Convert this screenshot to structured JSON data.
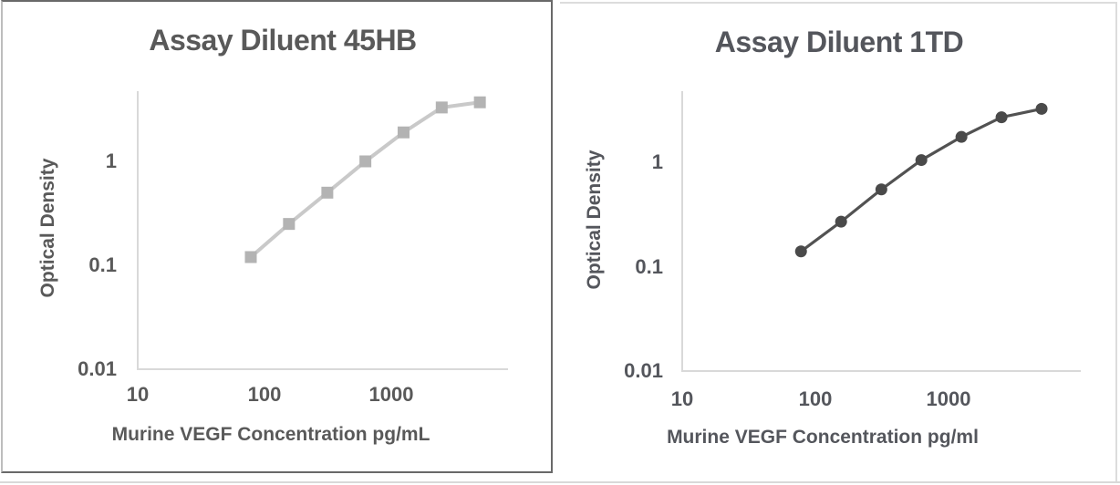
{
  "page": {
    "background": "#ffffff"
  },
  "chart_data": [
    {
      "type": "line",
      "title": "Assay Diluent 45HB",
      "xlabel": "Murine VEGF Concentration pg/mL",
      "ylabel": "Optical Density",
      "x_scale": "log",
      "y_scale": "log",
      "x": [
        78,
        156,
        313,
        625,
        1250,
        2500,
        5000
      ],
      "values": [
        0.12,
        0.25,
        0.5,
        1.0,
        1.9,
        3.3,
        3.7
      ],
      "x_ticks": [
        "10",
        "100",
        "1000"
      ],
      "y_ticks": [
        "1",
        "0.1",
        "0.01"
      ],
      "xlim": [
        10,
        8000
      ],
      "ylim": [
        0.01,
        5
      ],
      "grid": false,
      "legend_position": "none",
      "marker": "square",
      "marker_color": "#b3b3b3",
      "line_color": "#c9c9c9",
      "axis_color": "#d9d9d9",
      "text_color": "#595959"
    },
    {
      "type": "line",
      "title": "Assay Diluent 1TD",
      "xlabel": "Murine VEGF Concentration pg/ml",
      "ylabel": "Optical Density",
      "x_scale": "log",
      "y_scale": "log",
      "x": [
        78,
        156,
        313,
        625,
        1250,
        2500,
        5000
      ],
      "values": [
        0.14,
        0.27,
        0.55,
        1.05,
        1.75,
        2.7,
        3.25
      ],
      "x_ticks": [
        "10",
        "100",
        "1000"
      ],
      "y_ticks": [
        "1",
        "0.1",
        "0.01"
      ],
      "xlim": [
        10,
        8000
      ],
      "ylim": [
        0.01,
        5
      ],
      "grid": false,
      "legend_position": "none",
      "marker": "circle",
      "marker_color": "#4a4a4a",
      "line_color": "#525252",
      "axis_color": "#d9d9d9",
      "text_color": "#54565c"
    }
  ]
}
